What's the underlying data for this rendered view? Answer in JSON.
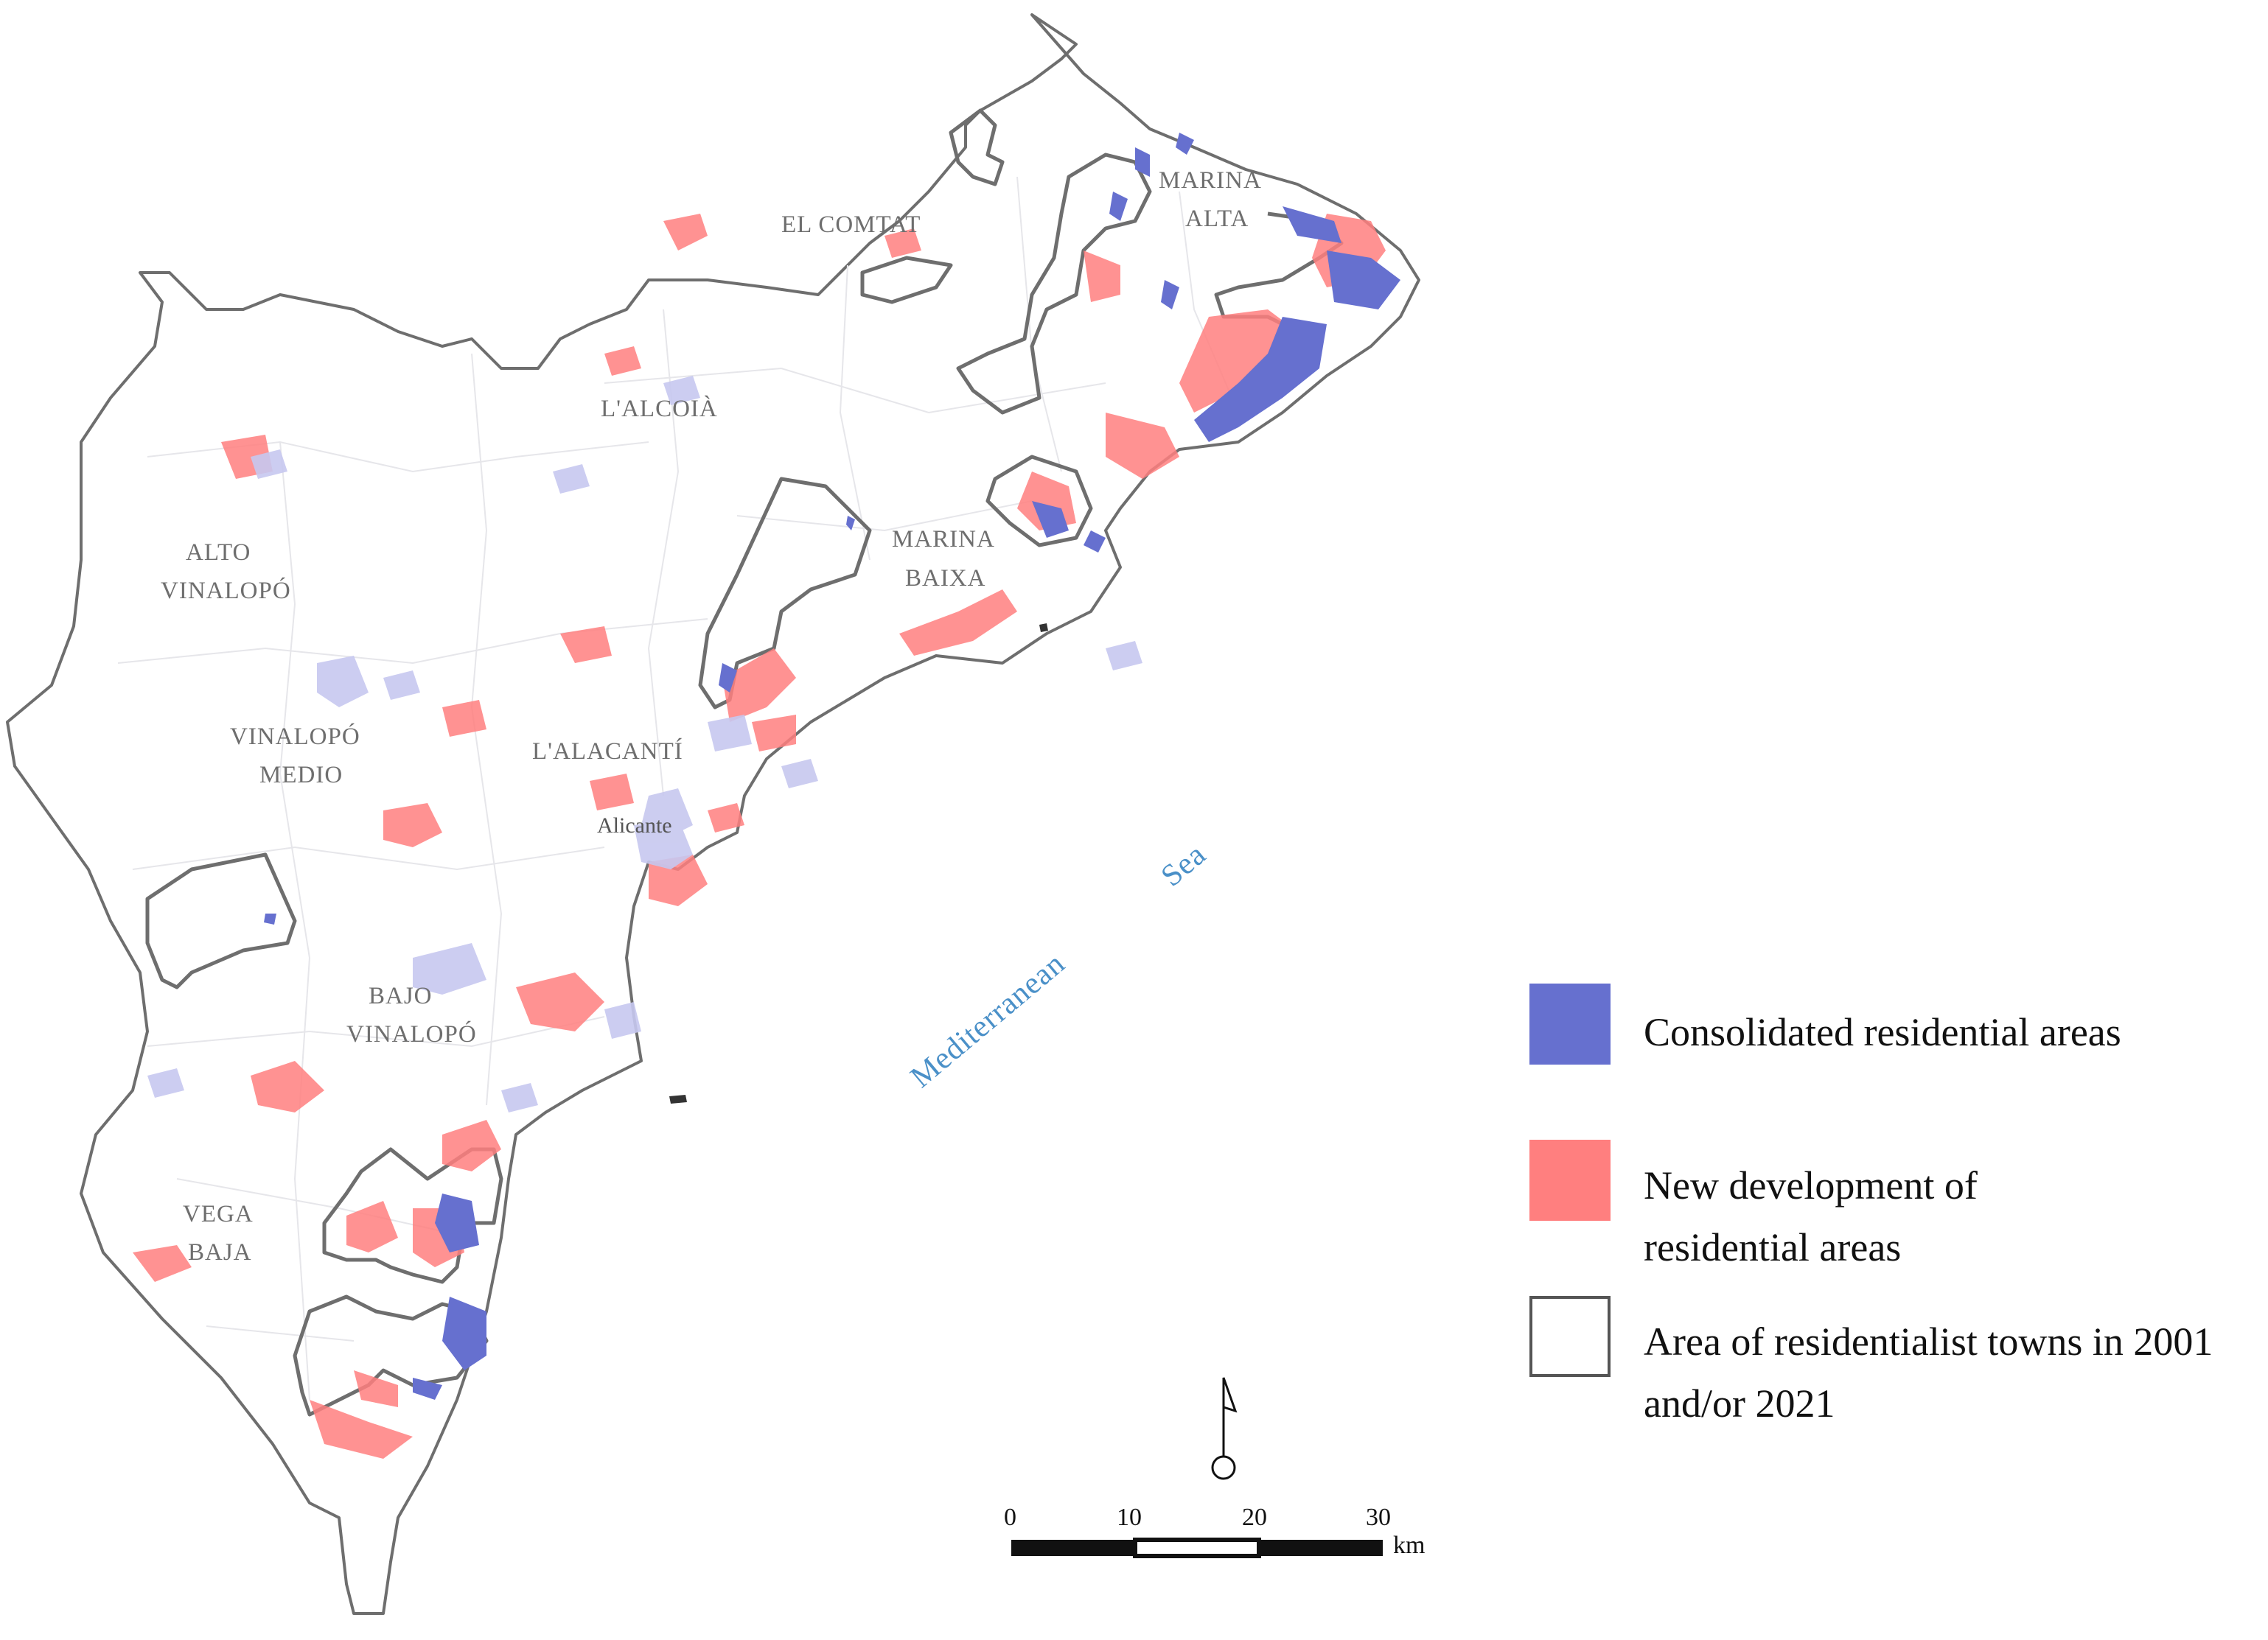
{
  "map": {
    "region_labels": {
      "el_comtat": "EL COMTAT",
      "marina_alta_1": "MARINA",
      "marina_alta_2": "ALTA",
      "l_alcoia": "L'ALCOIÀ",
      "alto_vinalopo_1": "ALTO",
      "alto_vinalopo_2": "VINALOPÓ",
      "marina_baixa_1": "MARINA",
      "marina_baixa_2": "BAIXA",
      "vinalopo_medio_1": "VINALOPÓ",
      "vinalopo_medio_2": "MEDIO",
      "l_alacanti": "L'ALACANTÍ",
      "bajo_vinalopo_1": "BAJO",
      "bajo_vinalopo_2": "VINALOPÓ",
      "vega_baja_1": "VEGA",
      "vega_baja_2": "BAJA"
    },
    "city_label": "Alicante",
    "sea_label_1": "Mediterranean",
    "sea_label_2": "Sea",
    "colors": {
      "consolidated": "#6670cf",
      "new_development": "#ff7f7f",
      "outline": "#555555",
      "land": "#ffffff"
    }
  },
  "scale_bar": {
    "ticks": [
      "0",
      "10",
      "20",
      "30"
    ],
    "unit": "km"
  },
  "north_arrow": {
    "icon": "north-arrow-icon"
  },
  "legend": {
    "items": [
      {
        "label": "Consolidated residential areas",
        "color": "#6670cf"
      },
      {
        "label": "New development of residential areas",
        "color": "#ff7f7f"
      },
      {
        "label": "Area of residentialist towns in 2001 and/or 2021",
        "color": "#ffffff"
      }
    ]
  }
}
